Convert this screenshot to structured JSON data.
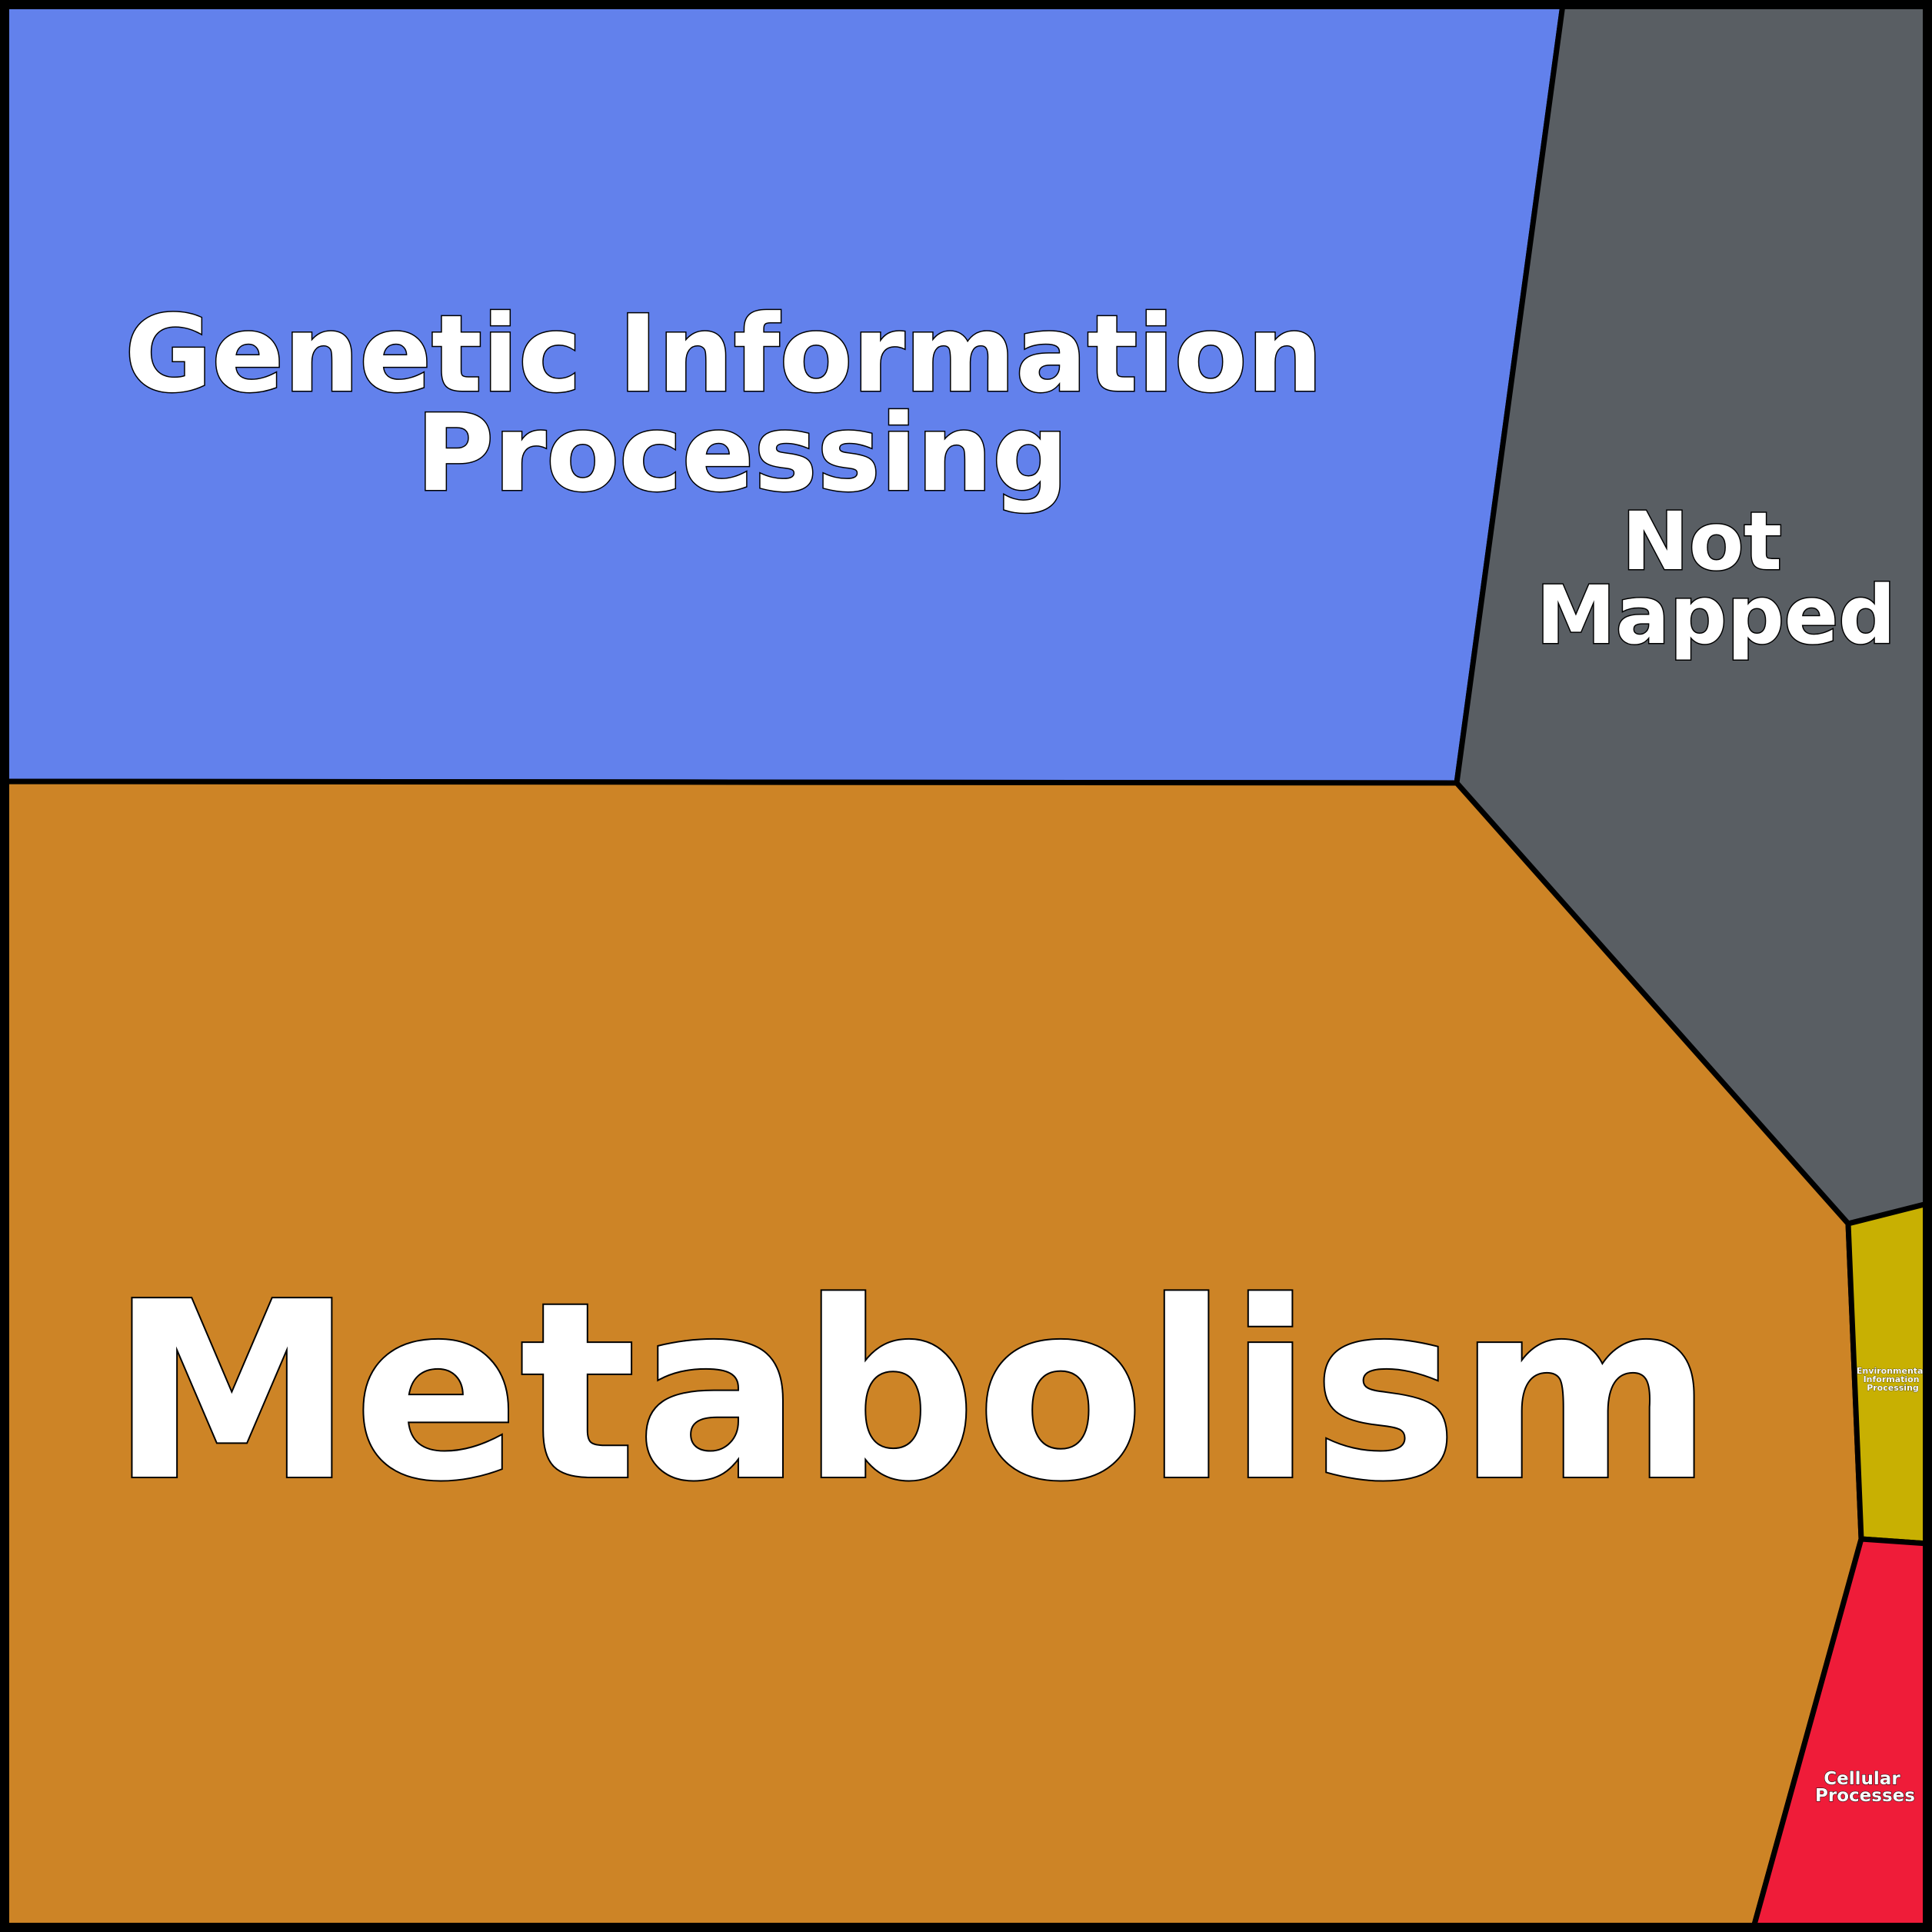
{
  "diagram": {
    "type": "voronoi-treemap",
    "cells": [
      {
        "id": "genetic",
        "label_lines": [
          "Genetic Information",
          "Processing"
        ],
        "color": "#6281EC"
      },
      {
        "id": "not-mapped",
        "label_lines": [
          "Not",
          "Mapped"
        ],
        "color": "#595E63"
      },
      {
        "id": "metabolism",
        "label_lines": [
          "Metabolism"
        ],
        "color": "#CD8426"
      },
      {
        "id": "environmental",
        "label_lines": [
          "Environmental",
          "Information",
          "Processing"
        ],
        "color": "#C8B002"
      },
      {
        "id": "cellular",
        "label_lines": [
          "Cellular",
          "Processes"
        ],
        "color": "#EF1C39"
      }
    ]
  }
}
